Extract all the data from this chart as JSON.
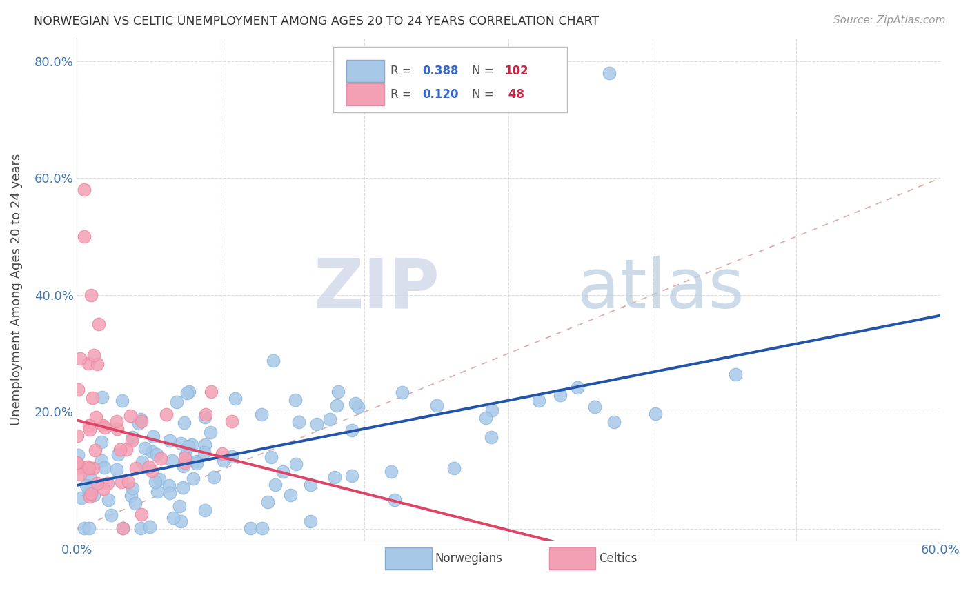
{
  "title": "NORWEGIAN VS CELTIC UNEMPLOYMENT AMONG AGES 20 TO 24 YEARS CORRELATION CHART",
  "source": "Source: ZipAtlas.com",
  "ylabel": "Unemployment Among Ages 20 to 24 years",
  "xlim": [
    0.0,
    0.6
  ],
  "ylim": [
    -0.02,
    0.84
  ],
  "norwegian_color": "#a8c8e8",
  "celtic_color": "#f4a0b4",
  "norwegian_line_color": "#2255aa",
  "celtic_line_color": "#dd4466",
  "diagonal_color": "#ddaaaa",
  "watermark_zip": "ZIP",
  "watermark_atlas": "atlas",
  "R_norwegian": 0.388,
  "N_norwegian": 102,
  "R_celtic": 0.12,
  "N_celtic": 48
}
